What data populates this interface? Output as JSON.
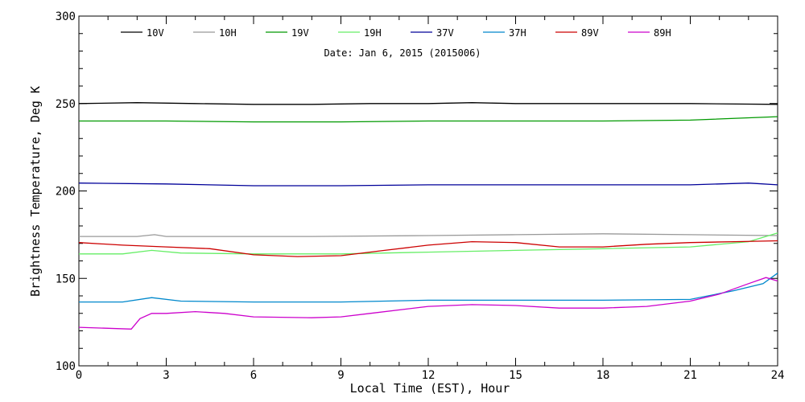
{
  "chart_data": {
    "type": "line",
    "subtitle": "Date: Jan  6, 2015 (2015006)",
    "xlabel": "Local Time (EST), Hour",
    "ylabel": "Brightness Temperature, Deg K",
    "xlim": [
      0,
      24
    ],
    "ylim": [
      100,
      300
    ],
    "x_ticks": [
      0,
      3,
      6,
      9,
      12,
      15,
      18,
      21,
      24
    ],
    "y_ticks": [
      100,
      150,
      200,
      250,
      300
    ],
    "grid": false,
    "legend_position": "top",
    "series": [
      {
        "name": "10V",
        "color": "#000000",
        "points": [
          [
            0,
            250
          ],
          [
            2,
            250.5
          ],
          [
            4,
            250
          ],
          [
            6,
            249.5
          ],
          [
            8,
            249.5
          ],
          [
            10,
            250
          ],
          [
            12,
            250
          ],
          [
            13.5,
            250.5
          ],
          [
            15,
            250
          ],
          [
            18,
            250
          ],
          [
            21,
            250
          ],
          [
            24,
            249.5
          ]
        ]
      },
      {
        "name": "10H",
        "color": "#999999",
        "points": [
          [
            0,
            174
          ],
          [
            2,
            174
          ],
          [
            2.6,
            175
          ],
          [
            3,
            174
          ],
          [
            5,
            174
          ],
          [
            8,
            174
          ],
          [
            12,
            174.5
          ],
          [
            15,
            175
          ],
          [
            18,
            175.5
          ],
          [
            21,
            175
          ],
          [
            24,
            174.5
          ]
        ]
      },
      {
        "name": "19V",
        "color": "#009900",
        "points": [
          [
            0,
            240
          ],
          [
            3,
            240
          ],
          [
            6,
            239.5
          ],
          [
            9,
            239.5
          ],
          [
            12,
            240
          ],
          [
            15,
            240
          ],
          [
            18,
            240
          ],
          [
            21,
            240.5
          ],
          [
            24,
            242.5
          ]
        ]
      },
      {
        "name": "19H",
        "color": "#66ee66",
        "points": [
          [
            0,
            164
          ],
          [
            1.5,
            164
          ],
          [
            2.5,
            166
          ],
          [
            3.5,
            164.5
          ],
          [
            6,
            164
          ],
          [
            9,
            164
          ],
          [
            12,
            165
          ],
          [
            15,
            166
          ],
          [
            18,
            167
          ],
          [
            21,
            168
          ],
          [
            23,
            171
          ],
          [
            24,
            176
          ]
        ]
      },
      {
        "name": "37V",
        "color": "#000099",
        "points": [
          [
            0,
            204.5
          ],
          [
            3,
            204
          ],
          [
            6,
            203
          ],
          [
            9,
            203
          ],
          [
            12,
            203.5
          ],
          [
            15,
            203.5
          ],
          [
            18,
            203.5
          ],
          [
            21,
            203.5
          ],
          [
            23,
            204.5
          ],
          [
            24,
            203.5
          ]
        ]
      },
      {
        "name": "37H",
        "color": "#0088cc",
        "points": [
          [
            0,
            136.5
          ],
          [
            1.5,
            136.5
          ],
          [
            2.5,
            139
          ],
          [
            3.5,
            137
          ],
          [
            6,
            136.5
          ],
          [
            9,
            136.5
          ],
          [
            12,
            137.5
          ],
          [
            15,
            137.5
          ],
          [
            18,
            137.5
          ],
          [
            21,
            138
          ],
          [
            22.5,
            143
          ],
          [
            23.5,
            147
          ],
          [
            24,
            153
          ]
        ]
      },
      {
        "name": "89V",
        "color": "#cc0000",
        "points": [
          [
            0,
            170.5
          ],
          [
            1.5,
            169
          ],
          [
            3,
            168
          ],
          [
            4.5,
            167
          ],
          [
            6,
            163.5
          ],
          [
            7.5,
            162.5
          ],
          [
            9,
            163
          ],
          [
            10.5,
            166
          ],
          [
            12,
            169
          ],
          [
            13.5,
            171
          ],
          [
            15,
            170.5
          ],
          [
            16.5,
            168
          ],
          [
            18,
            168
          ],
          [
            19.5,
            169.5
          ],
          [
            21,
            170.5
          ],
          [
            22.5,
            171
          ],
          [
            24,
            171.5
          ]
        ]
      },
      {
        "name": "89H",
        "color": "#cc00cc",
        "points": [
          [
            0,
            122
          ],
          [
            1.8,
            121
          ],
          [
            2.1,
            127
          ],
          [
            2.5,
            130
          ],
          [
            3,
            130
          ],
          [
            4,
            131
          ],
          [
            5,
            130
          ],
          [
            6,
            128
          ],
          [
            8,
            127.5
          ],
          [
            9,
            128
          ],
          [
            10,
            130
          ],
          [
            12,
            134
          ],
          [
            13.5,
            135
          ],
          [
            15,
            134.5
          ],
          [
            16.5,
            133
          ],
          [
            18,
            133
          ],
          [
            19.5,
            134
          ],
          [
            21,
            137
          ],
          [
            22,
            141
          ],
          [
            23,
            147
          ],
          [
            23.6,
            150.5
          ],
          [
            24,
            148.5
          ]
        ]
      }
    ]
  }
}
